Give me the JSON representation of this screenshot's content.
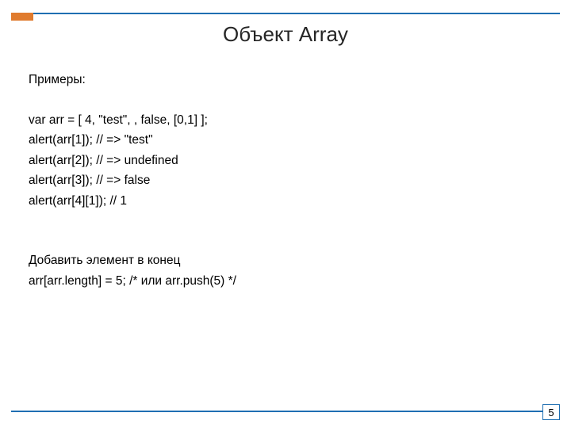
{
  "colors": {
    "rule": "#1f6fb2",
    "accent": "#e07b2e",
    "text": "#000000",
    "title": "#262626",
    "background": "#ffffff"
  },
  "title": "Объект Array",
  "lines": {
    "l0": "Примеры:",
    "l1": "var arr = [ 4, \"test\", , false, [0,1] ];",
    "l2": "alert(arr[1]); // => \"test\"",
    "l3": "alert(arr[2]); // => undefined",
    "l4": "alert(arr[3]); // => false",
    "l5": "alert(arr[4][1]); // 1",
    "l6": "Добавить элемент в конец",
    "l7": "arr[arr.length] = 5;  /* или arr.push(5) */"
  },
  "page_number": "5"
}
